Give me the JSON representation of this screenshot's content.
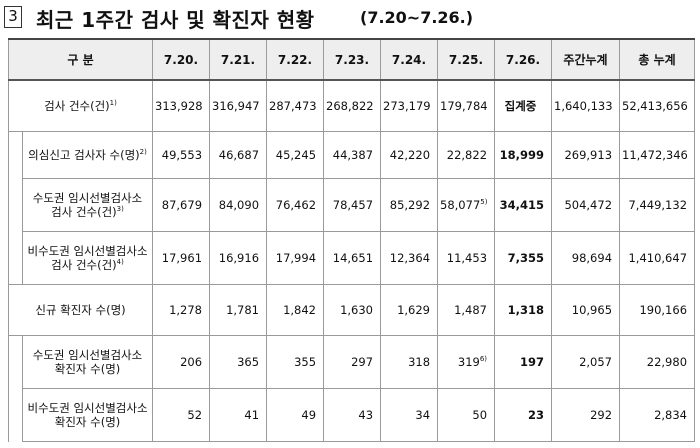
{
  "heading": {
    "number": "3",
    "title": "최근 1주간 검사 및 확진자 현황",
    "subtitle": "(7.20~7.26.)"
  },
  "table": {
    "headers": [
      "구 분",
      "7.20.",
      "7.21.",
      "7.22.",
      "7.23.",
      "7.24.",
      "7.25.",
      "7.26.",
      "주간누계",
      "총 누계"
    ],
    "rows": [
      {
        "label": "검사 건수(건)",
        "sup": "1)",
        "values": [
          "313,928",
          "316,947",
          "287,473",
          "268,822",
          "273,179",
          "179,784",
          "집계중",
          "1,640,133",
          "52,413,656"
        ]
      },
      {
        "label": "의심신고 검사자 수(명)",
        "sup": "2)",
        "values": [
          "49,553",
          "46,687",
          "45,245",
          "44,387",
          "42,220",
          "22,822",
          "18,999",
          "269,913",
          "11,472,346"
        ]
      },
      {
        "label": "수도권 임시선별검사소",
        "label2": "검사 건수(건)",
        "sup": "3)",
        "values": [
          "87,679",
          "84,090",
          "76,462",
          "78,457",
          "85,292",
          "58,077",
          "34,415",
          "504,472",
          "7,449,132"
        ],
        "sup6": "5)"
      },
      {
        "label": "비수도권 임시선별검사소",
        "label2": "검사 건수(건)",
        "sup": "4)",
        "values": [
          "17,961",
          "16,916",
          "17,994",
          "14,651",
          "12,364",
          "11,453",
          "7,355",
          "98,694",
          "1,410,647"
        ]
      },
      {
        "label": "신규 확진자 수(명)",
        "values": [
          "1,278",
          "1,781",
          "1,842",
          "1,630",
          "1,629",
          "1,487",
          "1,318",
          "10,965",
          "190,166"
        ]
      },
      {
        "label": "수도권 임시선별검사소",
        "label2": "확진자 수(명)",
        "values": [
          "206",
          "365",
          "355",
          "297",
          "318",
          "319",
          "197",
          "2,057",
          "22,980"
        ],
        "sup6": "6)"
      },
      {
        "label": "비수도권 임시선별검사소",
        "label2": "확진자 수(명)",
        "values": [
          "52",
          "41",
          "49",
          "43",
          "34",
          "50",
          "23",
          "292",
          "2,834"
        ]
      }
    ]
  }
}
